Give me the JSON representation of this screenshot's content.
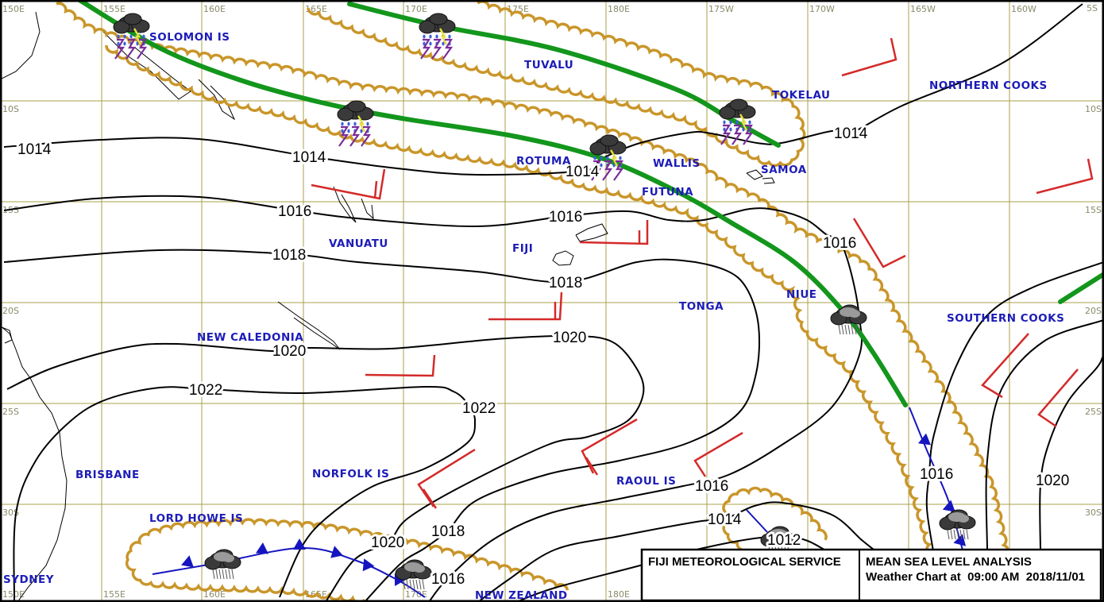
{
  "title_box": {
    "agency": "FIJI METEOROLOGICAL SERVICE",
    "chart_title": "MEAN SEA LEVEL ANALYSIS",
    "valid_prefix": "Weather Chart at",
    "valid_time": "09:00 AM",
    "valid_date": "2018/11/01"
  },
  "longitude_labels_top": [
    "150E",
    "155E",
    "160E",
    "165E",
    "170E",
    "175E",
    "180E",
    "175W",
    "170W",
    "165W",
    "160W"
  ],
  "longitude_labels_bottom": [
    "150E",
    "155E",
    "160E",
    "165E",
    "170E",
    "180E"
  ],
  "latitude_labels_right": [
    "5S",
    "10S",
    "15S",
    "20S",
    "25S",
    "30S"
  ],
  "latitude_labels_left": [
    "10S",
    "15S",
    "20S",
    "25S",
    "30S"
  ],
  "places": [
    {
      "name": "SOLOMON IS"
    },
    {
      "name": "TUVALU"
    },
    {
      "name": "TOKELAU"
    },
    {
      "name": "NORTHERN COOKS"
    },
    {
      "name": "ROTUMA"
    },
    {
      "name": "WALLIS"
    },
    {
      "name": "FUTUNA"
    },
    {
      "name": "SAMOA"
    },
    {
      "name": "VANUATU"
    },
    {
      "name": "FIJI"
    },
    {
      "name": "NIUE"
    },
    {
      "name": "TONGA"
    },
    {
      "name": "SOUTHERN COOKS"
    },
    {
      "name": "NEW CALEDONIA"
    },
    {
      "name": "BRISBANE"
    },
    {
      "name": "NORFOLK IS"
    },
    {
      "name": "RAOUL IS"
    },
    {
      "name": "LORD HOWE IS"
    },
    {
      "name": "SYDNEY"
    },
    {
      "name": "NEW ZEALAND"
    }
  ],
  "isobar_labels": [
    {
      "text": "1014"
    },
    {
      "text": "1014"
    },
    {
      "text": "1014"
    },
    {
      "text": "1014"
    },
    {
      "text": "1016"
    },
    {
      "text": "1016"
    },
    {
      "text": "1016"
    },
    {
      "text": "1018"
    },
    {
      "text": "1018"
    },
    {
      "text": "1020"
    },
    {
      "text": "1020"
    },
    {
      "text": "1022"
    },
    {
      "text": "1022"
    },
    {
      "text": "1020"
    },
    {
      "text": "1018"
    },
    {
      "text": "1016"
    },
    {
      "text": "1016"
    },
    {
      "text": "1014"
    },
    {
      "text": "1012"
    },
    {
      "text": "1016"
    },
    {
      "text": "1020"
    }
  ],
  "legend_symbols": {
    "isobar": "black line (hPa)",
    "convergence_zone": "green thick line",
    "cloud_band": "gold scalloped outline",
    "cold_front": "blue line with triangles",
    "wind_barb": "red barb",
    "weather_icons": [
      "thunderstorm-icon",
      "rain-cloud-icon"
    ]
  },
  "colors": {
    "isobar": "#000000",
    "convergence_zone": "#13961c",
    "cloud_band": "#c9962a",
    "front": "#1515c0",
    "wind_barb": "#d42a2a",
    "place_label": "#1c1cb8",
    "grid": "#a8a048"
  }
}
